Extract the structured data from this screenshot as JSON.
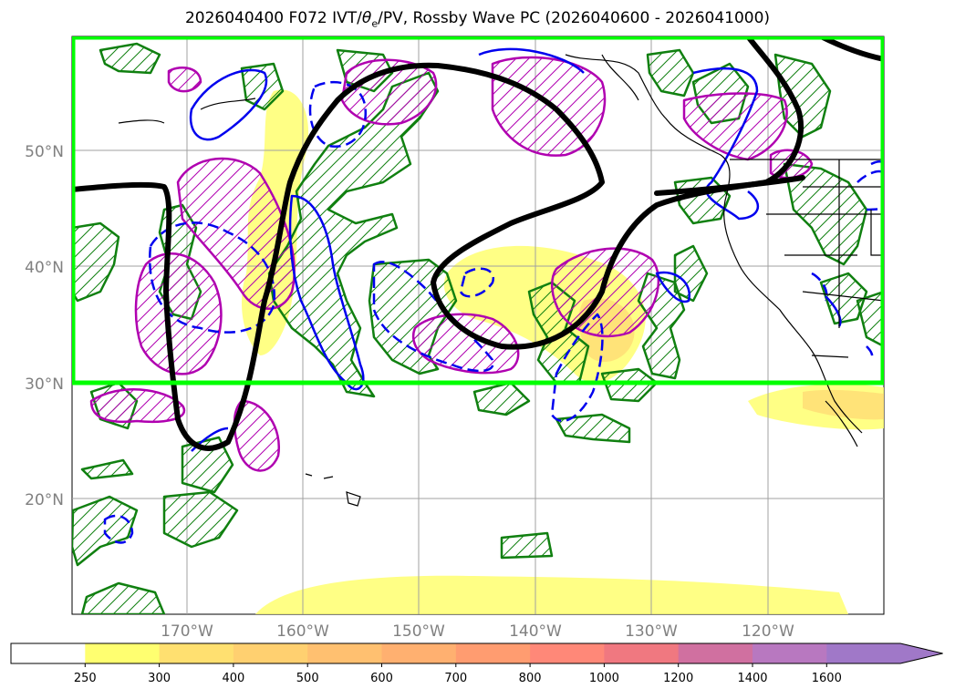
{
  "title": {
    "prefix": "2026040400 F072 IVT/",
    "theta": "θ",
    "theta_sub": "e",
    "suffix": "/PV, Rossby Wave PC (2026040600 - 2026041000)"
  },
  "map": {
    "lat_labels": [
      "50°N",
      "40°N",
      "30°N",
      "20°N"
    ],
    "lon_labels": [
      "170°W",
      "160°W",
      "150°W",
      "140°W",
      "130°W",
      "120°W"
    ],
    "colors": {
      "highlight_box": "#00ff00",
      "rossby_wave": "#000000",
      "pv_positive": "#b000b0",
      "theta_e": "#0000ee",
      "pv_anomaly_green": "#108010",
      "ivt_fill": "#ffff66",
      "coast": "#000000",
      "grid": "#a0a0a0"
    }
  },
  "colorbar": {
    "ticks": [
      "250",
      "300",
      "400",
      "500",
      "600",
      "700",
      "800",
      "1000",
      "1200",
      "1400",
      "1600"
    ],
    "colors": [
      "#ffff70",
      "#ffe070",
      "#ffd070",
      "#ffc070",
      "#ffb070",
      "#ff9c70",
      "#ff8878",
      "#f07880",
      "#d070a0",
      "#b878c0",
      "#a078c8"
    ]
  }
}
